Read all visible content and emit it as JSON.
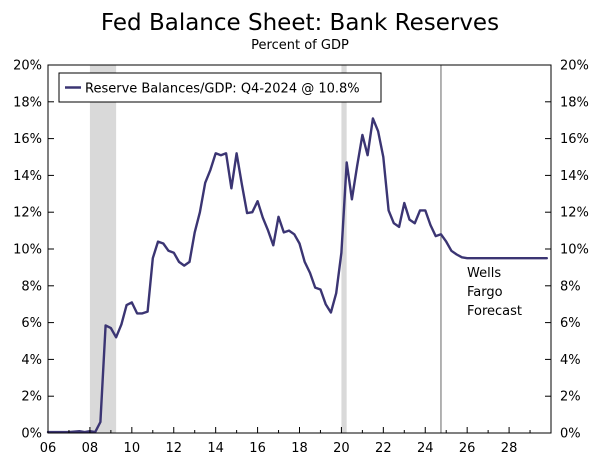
{
  "chart_data": {
    "type": "line",
    "title": "Fed Balance Sheet: Bank Reserves",
    "subtitle": "Percent of GDP",
    "xlabel": "",
    "ylabel": "",
    "xlim": [
      2006,
      2030
    ],
    "ylim": [
      0,
      20
    ],
    "x_ticks": [
      {
        "value": 2006,
        "label": "06"
      },
      {
        "value": 2008,
        "label": "08"
      },
      {
        "value": 2010,
        "label": "10"
      },
      {
        "value": 2012,
        "label": "12"
      },
      {
        "value": 2014,
        "label": "14"
      },
      {
        "value": 2016,
        "label": "16"
      },
      {
        "value": 2018,
        "label": "18"
      },
      {
        "value": 2020,
        "label": "20"
      },
      {
        "value": 2022,
        "label": "22"
      },
      {
        "value": 2024,
        "label": "24"
      },
      {
        "value": 2026,
        "label": "26"
      },
      {
        "value": 2028,
        "label": "28"
      }
    ],
    "y_ticks": [
      {
        "value": 0,
        "label": "0%"
      },
      {
        "value": 2,
        "label": "2%"
      },
      {
        "value": 4,
        "label": "4%"
      },
      {
        "value": 6,
        "label": "6%"
      },
      {
        "value": 8,
        "label": "8%"
      },
      {
        "value": 10,
        "label": "10%"
      },
      {
        "value": 12,
        "label": "12%"
      },
      {
        "value": 14,
        "label": "14%"
      },
      {
        "value": 16,
        "label": "16%"
      },
      {
        "value": 18,
        "label": "18%"
      },
      {
        "value": 20,
        "label": "20%"
      }
    ],
    "grid": false,
    "legend_position": "top-left",
    "colors": {
      "line": "#3b3573",
      "recession": "#d9d9d9",
      "axis": "#000000",
      "forecast_line": "#666666"
    },
    "recessions": [
      {
        "start": 2008.0,
        "end": 2009.25
      },
      {
        "start": 2020.0,
        "end": 2020.25
      }
    ],
    "forecast_start": 2024.75,
    "forecast_label": [
      "Wells",
      "Fargo",
      "Forecast"
    ],
    "series": [
      {
        "name": "Reserve Balances/GDP: Q4-2024 @ 10.8%",
        "x": [
          2006.0,
          2006.5,
          2007.0,
          2007.5,
          2007.75,
          2008.0,
          2008.25,
          2008.5,
          2008.75,
          2009.0,
          2009.25,
          2009.5,
          2009.75,
          2010.0,
          2010.25,
          2010.5,
          2010.75,
          2011.0,
          2011.25,
          2011.5,
          2011.75,
          2012.0,
          2012.25,
          2012.5,
          2012.75,
          2013.0,
          2013.25,
          2013.5,
          2013.75,
          2014.0,
          2014.25,
          2014.5,
          2014.75,
          2015.0,
          2015.25,
          2015.5,
          2015.75,
          2016.0,
          2016.25,
          2016.5,
          2016.75,
          2017.0,
          2017.25,
          2017.5,
          2017.75,
          2018.0,
          2018.25,
          2018.5,
          2018.75,
          2019.0,
          2019.25,
          2019.5,
          2019.75,
          2020.0,
          2020.25,
          2020.5,
          2020.75,
          2021.0,
          2021.25,
          2021.5,
          2021.75,
          2022.0,
          2022.25,
          2022.5,
          2022.75,
          2023.0,
          2023.25,
          2023.5,
          2023.75,
          2024.0,
          2024.25,
          2024.5,
          2024.75,
          2025.0,
          2025.25,
          2025.5,
          2025.75,
          2026.0,
          2026.5,
          2027.0,
          2027.5,
          2028.0,
          2028.5,
          2029.0,
          2029.5,
          2029.8
        ],
        "values": [
          0.05,
          0.05,
          0.05,
          0.1,
          0.05,
          0.1,
          0.05,
          0.6,
          5.85,
          5.7,
          5.2,
          5.9,
          6.95,
          7.1,
          6.5,
          6.5,
          6.6,
          9.5,
          10.4,
          10.3,
          9.9,
          9.8,
          9.3,
          9.1,
          9.3,
          10.9,
          12.0,
          13.6,
          14.3,
          15.2,
          15.1,
          15.2,
          13.3,
          15.2,
          13.5,
          11.95,
          12.0,
          12.6,
          11.7,
          11.0,
          10.2,
          11.75,
          10.9,
          11.0,
          10.8,
          10.3,
          9.3,
          8.7,
          7.9,
          7.8,
          7.0,
          6.55,
          7.6,
          9.8,
          14.7,
          12.7,
          14.5,
          16.2,
          15.1,
          17.1,
          16.4,
          15.0,
          12.1,
          11.4,
          11.2,
          12.5,
          11.6,
          11.4,
          12.1,
          12.1,
          11.3,
          10.7,
          10.8,
          10.4,
          9.9,
          9.7,
          9.55,
          9.5,
          9.5,
          9.5,
          9.5,
          9.5,
          9.5,
          9.5,
          9.5,
          9.5
        ]
      }
    ]
  }
}
